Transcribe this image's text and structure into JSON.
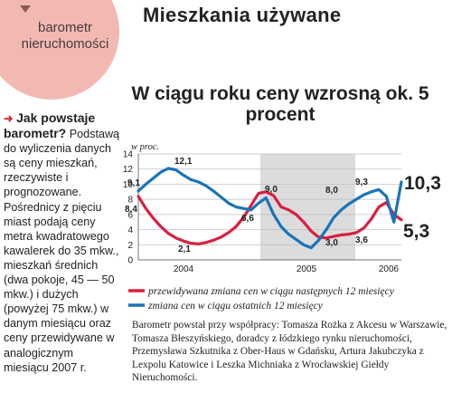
{
  "section_label": "barometr nieruchomości",
  "page_title": "Mieszkania używane",
  "sidebar": {
    "lead": "Jak powstaje barometr?",
    "body": "Podstawą do wyliczenia danych są ceny mieszkań, rzeczywiste i prognozowane. Pośrednicy z pięciu miast podają ceny metra kwadratowego kawalerek do 35 mkw., mieszkań średnich (dwa pokoje, 45 — 50 mkw.) i dużych (powyżej 75 mkw.) w danym miesiącu oraz ceny przewidywane w analogicznym miesiącu 2007 r."
  },
  "footnote": "Barometr powstał przy współpracy: Tomasza Rożka z Akcesu w Warszawie, Tomasza Błeszyńskiego, doradcy z łódzkiego rynku nieruchomości, Przemysława Szkutnika z Ober-Haus w Gdańsku, Artura Jakubczyka z Lexpolu Katowice i Leszka Michniaka z Wrocławskiej Giełdy Nieruchomości.",
  "colors": {
    "predicted": "#d81f40",
    "actual": "#1a73b8",
    "band": "#dcdcdc"
  },
  "chart_data": {
    "type": "line",
    "title": "W ciągu roku ceny wzrosną ok. 5 procent",
    "ylabel": "w proc.",
    "ylim": [
      0,
      14
    ],
    "yticks": [
      0,
      2,
      4,
      6,
      8,
      10,
      12,
      14
    ],
    "x_labels": [
      "2004",
      "2005",
      "2006"
    ],
    "grid": true,
    "series": [
      {
        "name": "przewidywana zmiana cen w ciągu następnych 12 miesięcy",
        "values": [
          8.4,
          6.8,
          5.5,
          4.4,
          3.5,
          2.9,
          2.5,
          2.2,
          2.1,
          2.3,
          2.6,
          3.0,
          3.6,
          4.4,
          5.6,
          7.2,
          8.8,
          9.0,
          8.5,
          7.0,
          6.6,
          6.0,
          5.0,
          3.8,
          3.0,
          2.9,
          3.1,
          3.3,
          3.4,
          3.6,
          4.2,
          5.4,
          7.0,
          7.6,
          6.0,
          5.3
        ]
      },
      {
        "name": "zmiana cen w ciągu ostatnich 12 miesięcy",
        "values": [
          9.1,
          10.0,
          10.8,
          11.6,
          12.1,
          11.9,
          11.2,
          10.6,
          10.3,
          9.8,
          9.1,
          8.3,
          7.5,
          7.0,
          6.8,
          6.6,
          7.5,
          8.2,
          6.0,
          4.4,
          3.4,
          2.7,
          2.0,
          1.6,
          2.6,
          4.0,
          5.6,
          6.6,
          7.4,
          8.0,
          8.6,
          9.0,
          9.3,
          8.4,
          5.0,
          10.3
        ]
      }
    ],
    "annotations": [
      "9,1",
      "8,4",
      "12,1",
      "2,1",
      "9,0",
      "6,6",
      "8,0",
      "9,3",
      "3,0",
      "3,6",
      "10,3",
      "5,3"
    ]
  }
}
